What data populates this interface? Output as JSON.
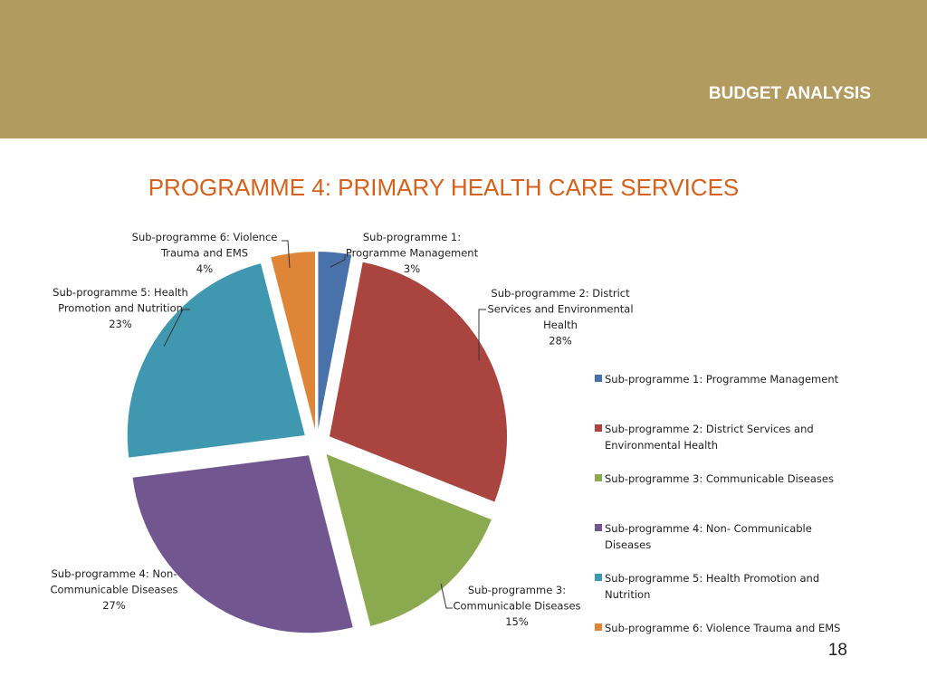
{
  "header": {
    "title": "BUDGET ANALYSIS"
  },
  "slide": {
    "title": "PROGRAMME 4: PRIMARY HEALTH CARE SERVICES",
    "page_number": "18"
  },
  "chart_data": {
    "type": "pie",
    "exploded": true,
    "legend_position": "right",
    "categories": [
      "Sub-programme 1: Programme Management",
      "Sub-programme 2: District Services and Environmental Health",
      "Sub-programme 3: Communicable Diseases",
      "Sub-programme 4: Non- Communicable Diseases",
      "Sub-programme 5: Health Promotion and Nutrition",
      "Sub-programme 6: Violence Trauma and EMS"
    ],
    "values": [
      3,
      28,
      15,
      27,
      23,
      4
    ],
    "value_labels": [
      "3%",
      "28%",
      "15%",
      "27%",
      "23%",
      "4%"
    ],
    "slice_labels": [
      [
        "Sub-programme 1:",
        "Programme Management"
      ],
      [
        "Sub-programme 2: District",
        "Services and Environmental",
        "Health"
      ],
      [
        "Sub-programme 3:",
        "Communicable Diseases"
      ],
      [
        "Sub-programme 4: Non-",
        "Communicable Diseases"
      ],
      [
        "Sub-programme 5: Health",
        "Promotion and Nutrition"
      ],
      [
        "Sub-programme 6: Violence",
        "Trauma and EMS"
      ]
    ],
    "legend": [
      [
        "Sub-programme 1: Programme Management"
      ],
      [
        "Sub-programme 2: District Services and",
        "Environmental Health"
      ],
      [
        "Sub-programme 3: Communicable Diseases"
      ],
      [
        "Sub-programme 4: Non- Communicable",
        "Diseases"
      ],
      [
        "Sub-programme 5: Health Promotion and",
        "Nutrition"
      ],
      [
        "Sub-programme 6: Violence Trauma and EMS"
      ]
    ],
    "colors": [
      "#4a72aa",
      "#a9443f",
      "#8ba94e",
      "#715690",
      "#3f98af",
      "#de8538"
    ]
  }
}
